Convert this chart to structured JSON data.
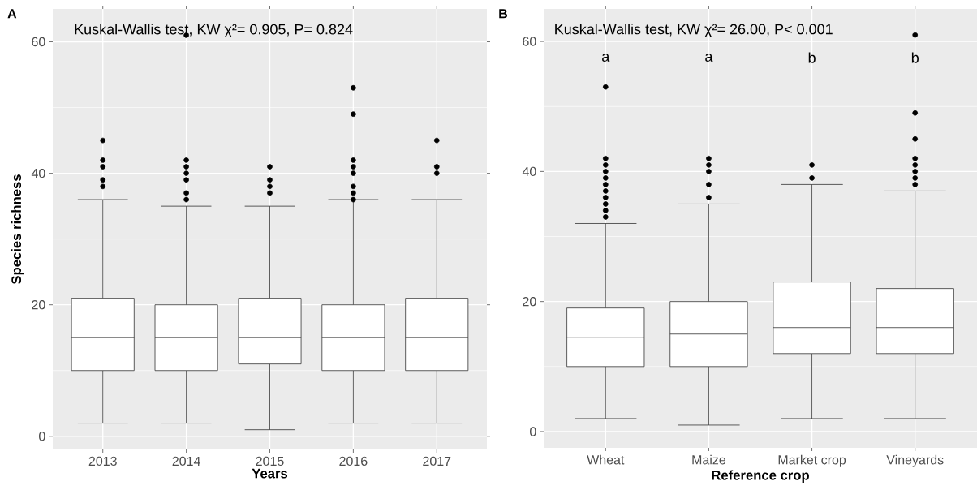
{
  "chart_data": [
    {
      "type": "box",
      "title": "A",
      "xlabel": "Years",
      "ylabel": "Species richness",
      "categories": [
        "2013",
        "2014",
        "2015",
        "2016",
        "2017"
      ],
      "boxes": [
        {
          "low": 2,
          "q1": 10,
          "median": 15,
          "q3": 21,
          "high": 36,
          "outliers": [
            45,
            42,
            41,
            39,
            38
          ]
        },
        {
          "low": 2,
          "q1": 10,
          "median": 15,
          "q3": 20,
          "high": 35,
          "outliers": [
            61,
            42,
            41,
            40,
            39,
            37,
            36
          ]
        },
        {
          "low": 1,
          "q1": 11,
          "median": 15,
          "q3": 21,
          "high": 35,
          "outliers": [
            41,
            39,
            38,
            37
          ]
        },
        {
          "low": 2,
          "q1": 10,
          "median": 15,
          "q3": 20,
          "high": 36,
          "outliers": [
            53,
            49,
            42,
            41,
            40,
            38,
            37,
            36
          ]
        },
        {
          "low": 2,
          "q1": 10,
          "median": 15,
          "q3": 21,
          "high": 36,
          "outliers": [
            45,
            41,
            40
          ]
        }
      ],
      "ylim": [
        -2,
        65
      ],
      "yticks": [
        0,
        20,
        40,
        60
      ],
      "grid": true,
      "annotations": [
        "Kuskal-Wallis test, KW χ²= 0.905, P= 0.824"
      ]
    },
    {
      "type": "box",
      "title": "B",
      "xlabel": "Reference crop",
      "categories": [
        "Wheat",
        "Maize",
        "Market crop",
        "Vineyards"
      ],
      "boxes": [
        {
          "low": 2,
          "q1": 10,
          "median": 14.5,
          "q3": 19,
          "high": 32,
          "outliers": [
            53,
            42,
            41,
            40,
            39,
            38,
            37,
            36,
            35,
            34,
            33
          ]
        },
        {
          "low": 1,
          "q1": 10,
          "median": 15,
          "q3": 20,
          "high": 35,
          "outliers": [
            42,
            41,
            40,
            38,
            36
          ]
        },
        {
          "low": 2,
          "q1": 12,
          "median": 16,
          "q3": 23,
          "high": 38,
          "outliers": [
            41,
            39
          ]
        },
        {
          "low": 2,
          "q1": 12,
          "median": 16,
          "q3": 22,
          "high": 37,
          "outliers": [
            61,
            49,
            45,
            42,
            41,
            40,
            39,
            38
          ]
        }
      ],
      "ylim": [
        -2.5,
        65
      ],
      "yticks": [
        0,
        20,
        40,
        60
      ],
      "grid": true,
      "annotations": [
        "Kuskal-Wallis test, KW χ²= 26.00, P< 0.001",
        "a",
        "a",
        "b",
        "b"
      ]
    }
  ]
}
